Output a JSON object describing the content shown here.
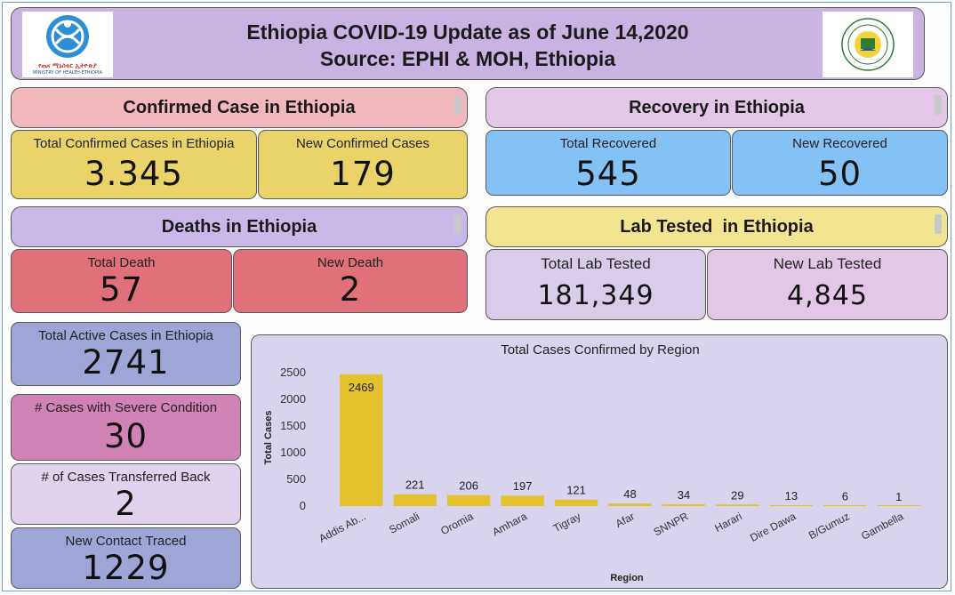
{
  "header": {
    "title_line1": "Ethiopia COVID-19 Update as of June 14,2020",
    "title_line2": "Source: EPHI & MOH, Ethiopia",
    "logo_left_text_am": "የጤና ሚኒስቴር ኢትዮጵያ",
    "logo_left_text_en": "MINISTRY OF HEALTH-ETHIOPIA"
  },
  "confirmed": {
    "title": "Confirmed Case in Ethiopia",
    "total_label": "Total Confirmed Cases in Ethiopia",
    "total_value": "3.345",
    "new_label": "New Confirmed Cases",
    "new_value": "179"
  },
  "recovery": {
    "title": "Recovery in Ethiopia",
    "total_label": "Total Recovered",
    "total_value": "545",
    "new_label": "New Recovered",
    "new_value": "50"
  },
  "deaths": {
    "title": "Deaths in Ethiopia",
    "total_label": "Total Death",
    "total_value": "57",
    "new_label": "New Death",
    "new_value": "2"
  },
  "lab": {
    "title": "Lab Tested  in Ethiopia",
    "total_label": "Total Lab Tested",
    "total_value": "181,349",
    "new_label": "New Lab Tested",
    "new_value": "4,845"
  },
  "active": {
    "label": "Total Active Cases in Ethiopia",
    "value": "2741"
  },
  "severe": {
    "label": "# Cases with Severe Condition",
    "value": "30"
  },
  "transferred": {
    "label": "# of Cases Transferred Back",
    "value": "2"
  },
  "contact": {
    "label": "New Contact Traced",
    "value": "1229"
  },
  "colors": {
    "yellow": "#ead46a",
    "pink": "#f3b8be",
    "blue": "#84c2f5",
    "lavender": "#e2c8e6",
    "violet": "#c9b8e8",
    "red": "#e0707a",
    "purple_card": "#d9cce8",
    "gold": "#f2e592",
    "indigo": "#9fa5d7",
    "magenta": "#d283b5",
    "lilac": "#e1d2ee",
    "bar": "#e3c22e"
  },
  "chart_data": {
    "type": "bar",
    "title": "Total Cases Confirmed by Region",
    "xlabel": "Region",
    "ylabel": "Total Cases",
    "ylim": [
      0,
      2500
    ],
    "yticks": [
      0,
      500,
      1000,
      1500,
      2000,
      2500
    ],
    "categories": [
      "Addis Ab...",
      "Somali",
      "Oromia",
      "Amhara",
      "Tigray",
      "Afar",
      "SNNPR",
      "Harari",
      "Dire Dawa",
      "B/Gumuz",
      "Gambella"
    ],
    "values": [
      2469,
      221,
      206,
      197,
      121,
      48,
      34,
      29,
      13,
      6,
      1
    ],
    "grid": false,
    "legend": "none"
  }
}
